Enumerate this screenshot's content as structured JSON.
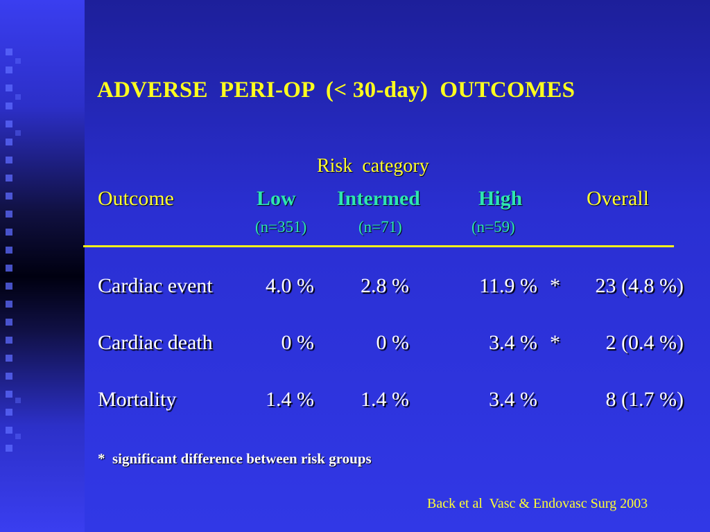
{
  "slide": {
    "title": "ADVERSE  PERI-OP  (< 30-day)  OUTCOMES",
    "risk_category_label": "Risk  category",
    "columns": {
      "outcome": "Outcome",
      "low": "Low",
      "intermed": "Intermed",
      "high": "High",
      "overall": "Overall"
    },
    "n": {
      "low": "(n=351)",
      "intermed": "(n=71)",
      "high": "(n=59)"
    },
    "rows": [
      {
        "outcome": "Cardiac event",
        "low": "4.0 %",
        "intermed": "2.8 %",
        "high": "11.9 %",
        "flag": "*",
        "overall": "23 (4.8 %)"
      },
      {
        "outcome": "Cardiac death",
        "low": "0 %",
        "intermed": "0 %",
        "high": "3.4 %",
        "flag": "*",
        "overall": "2 (0.4 %)"
      },
      {
        "outcome": "Mortality",
        "low": "1.4 %",
        "intermed": "1.4 %",
        "high": "3.4 %",
        "flag": "",
        "overall": "8 (1.7 %)"
      }
    ],
    "footnote": "*  significant difference between risk groups",
    "citation": "Back et al  Vasc & Endovasc Surg 2003",
    "colors": {
      "background": "#2a2fd2",
      "title": "#ffff1e",
      "header_teal": "#2ee6b0",
      "rule": "#f6f21a",
      "body_text": "#ffffff"
    }
  }
}
